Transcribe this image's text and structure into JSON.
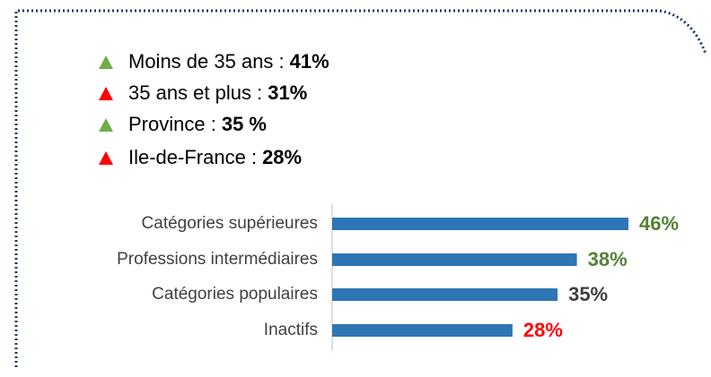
{
  "list": [
    {
      "label": "Moins de 35 ans :",
      "value": "41%",
      "trend": "up"
    },
    {
      "label": "35 ans et plus :",
      "value": "31%",
      "trend": "down"
    },
    {
      "label": "Province :",
      "value": "35 %",
      "trend": "up"
    },
    {
      "label": "Ile-de-France :",
      "value": "28%",
      "trend": "down"
    }
  ],
  "trend_colors": {
    "up": "#70ad47",
    "down": "#ff0000"
  },
  "chart_data": {
    "type": "bar",
    "orientation": "horizontal",
    "categories": [
      "Catégories supérieures",
      "Professions intermédiaires",
      "Catégories populaires",
      "Inactifs"
    ],
    "values": [
      46,
      38,
      35,
      28
    ],
    "value_labels": [
      "46%",
      "38%",
      "35%",
      "28%"
    ],
    "label_colors": [
      "#548235",
      "#548235",
      "#404040",
      "#ff0000"
    ],
    "color": "#2e75b6",
    "xlim": [
      0,
      50
    ]
  }
}
